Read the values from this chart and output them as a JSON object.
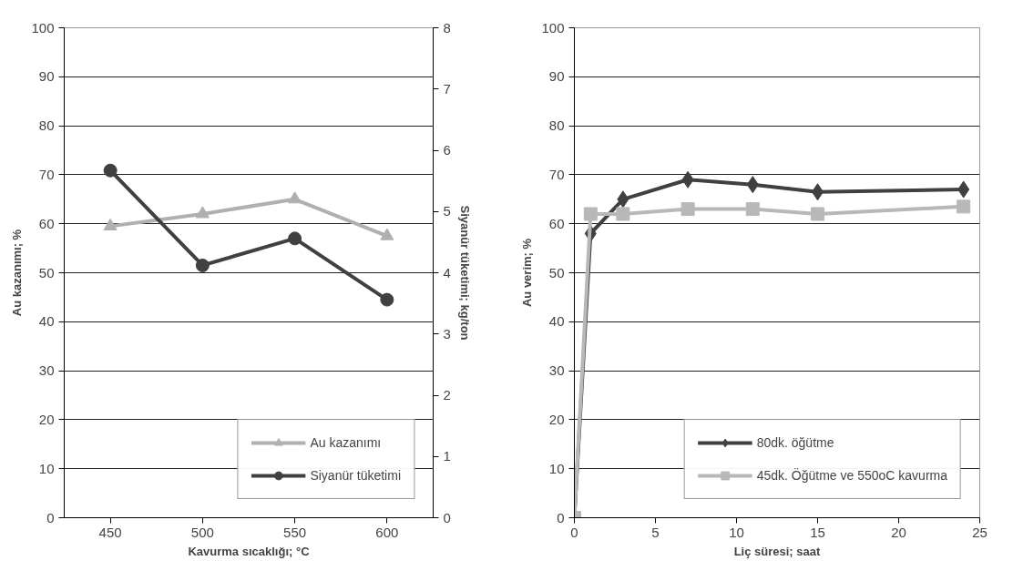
{
  "chart_data": [
    {
      "type": "line",
      "xlabel": "Kavurma sıcaklığı; °C",
      "ylabel": "Au kazanımı; %",
      "y2label": "Siyanür tüketimi; kg/ton",
      "categories": [
        "450",
        "500",
        "550",
        "600"
      ],
      "series": [
        {
          "name": "Au kazanımı",
          "color": "#b0b0b0",
          "marker": "triangle",
          "values": [
            59.5,
            62,
            65,
            57.5
          ]
        },
        {
          "name": "Siyanür tüketimi",
          "color": "#404040",
          "marker": "circle",
          "axis": "y2",
          "values": [
            5.67,
            4.12,
            4.56,
            3.56
          ]
        }
      ],
      "ylim": [
        0,
        100
      ],
      "yticks": [
        0,
        10,
        20,
        30,
        40,
        50,
        60,
        70,
        80,
        90,
        100
      ],
      "y2lim": [
        0,
        8
      ],
      "y2ticks": [
        0,
        1,
        2,
        3,
        4,
        5,
        6,
        7,
        8
      ],
      "grid": "y",
      "legend": "bottom right"
    },
    {
      "type": "line",
      "xlabel": "Liç süresi; saat",
      "ylabel": "Au verim; %",
      "series": [
        {
          "name": "80dk. öğütme",
          "color": "#404040",
          "marker": "diamond",
          "x": [
            0,
            1,
            3,
            7,
            11,
            15,
            24
          ],
          "values": [
            0,
            58,
            65,
            69,
            68,
            66.5,
            67
          ]
        },
        {
          "name": "45dk. Öğütme ve 550oC kavurma",
          "color": "#b8b8b8",
          "marker": "square",
          "x": [
            0,
            1,
            3,
            7,
            11,
            15,
            24
          ],
          "values": [
            0,
            62,
            62,
            63,
            63,
            62,
            63.5
          ]
        }
      ],
      "xlim": [
        0,
        25
      ],
      "xticks": [
        0,
        5,
        10,
        15,
        20,
        25
      ],
      "ylim": [
        0,
        100
      ],
      "yticks": [
        0,
        10,
        20,
        30,
        40,
        50,
        60,
        70,
        80,
        90,
        100
      ],
      "grid": "y",
      "legend": "bottom right"
    }
  ]
}
